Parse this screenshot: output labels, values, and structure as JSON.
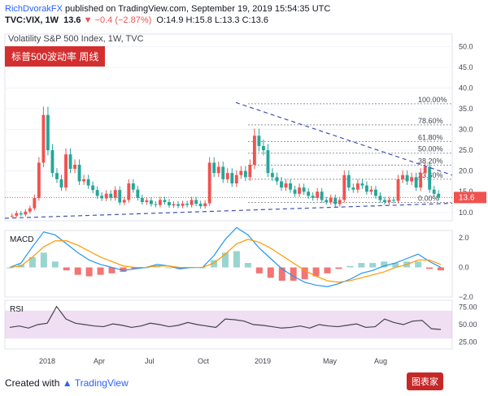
{
  "header": {
    "author": "RichDvorakFX",
    "published": "published on TradingView.com, September 19, 2019 15:54:35 UTC",
    "symbol": "TVC:VIX, 1W",
    "last": "13.6",
    "change": "−0.4 (−2.87%)",
    "ohlc": "O:14.9  H:15.8  L:13.3  C:13.6"
  },
  "main_title": "Volatility S&P 500 Index, 1W, TVC",
  "badge_text": "标普500波动率  周线",
  "footer": {
    "created_with": "Created with",
    "brand": "TradingView"
  },
  "logo_text": "图表家",
  "colors": {
    "up": "#26a69a",
    "down": "#ef5350",
    "last": "#ef5350",
    "macd": "#2196f3",
    "signal": "#ff9800",
    "rsi": "#434651",
    "rsi_band": "#e1bee7"
  },
  "chart_data": [
    {
      "type": "candlestick",
      "title": "Volatility S&P 500 Index, 1W, TVC",
      "ylim": [
        8,
        53
      ],
      "yticks": [
        "50.0",
        "45.0",
        "40.0",
        "35.0",
        "30.0",
        "25.0",
        "20.0",
        "15.0",
        "10.0"
      ],
      "last_price_label": "13.6",
      "fib_levels": [
        {
          "label": "100.00%",
          "value": 36.2
        },
        {
          "label": "78.60%",
          "value": 31.1
        },
        {
          "label": "61.80%",
          "value": 27.1
        },
        {
          "label": "50.00%",
          "value": 24.3
        },
        {
          "label": "38.20%",
          "value": 21.4
        },
        {
          "label": "23.60%",
          "value": 18.0
        },
        {
          "label": "0.00%",
          "value": 12.4
        }
      ],
      "x_labels": [
        "2018",
        "Apr",
        "Jul",
        "Oct",
        "2019",
        "May",
        "Aug"
      ],
      "weekly_close": [
        9.2,
        9.8,
        9.5,
        10.2,
        11.0,
        13.5,
        22.0,
        33.5,
        25.0,
        19.5,
        18.0,
        16.0,
        24.0,
        20.5,
        21.5,
        17.5,
        18.0,
        16.5,
        15.4,
        14.0,
        13.4,
        14.5,
        13.5,
        15.4,
        12.4,
        13.0,
        17.0,
        15.5,
        13.5,
        12.5,
        12.9,
        12.0,
        11.8,
        13.0,
        12.5,
        11.7,
        12.0,
        11.6,
        12.1,
        11.8,
        13.0,
        12.1,
        11.5,
        12.2,
        22.0,
        19.5,
        21.0,
        18.0,
        19.5,
        17.0,
        19.0,
        20.0,
        18.5,
        21.5,
        28.5,
        26.0,
        25.0,
        19.5,
        18.5,
        17.5,
        16.0,
        17.0,
        15.5,
        14.5,
        16.0,
        15.0,
        14.0,
        13.5,
        15.0,
        13.0,
        12.5,
        13.5,
        12.0,
        13.0,
        19.0,
        16.0,
        15.5,
        17.0,
        16.5,
        15.0,
        15.5,
        14.0,
        13.0,
        12.5,
        13.0,
        12.8,
        18.0,
        19.0,
        17.5,
        18.5,
        16.0,
        19.5,
        21.0,
        15.5,
        14.5,
        13.6
      ],
      "trendlines": [
        "descending resistance",
        "ascending support"
      ]
    },
    {
      "type": "line",
      "title": "MACD",
      "ylim": [
        -2.0,
        2.5
      ],
      "yticks": [
        "2.0",
        "0.0",
        "−2.0"
      ],
      "series": [
        {
          "name": "",
          "values": [
            0.0,
            0.3,
            1.4,
            2.4,
            2.2,
            1.6,
            1.0,
            0.5,
            0.2,
            0.0,
            -0.2,
            -0.1,
            0.0,
            0.2,
            0.1,
            -0.1,
            0.0,
            0.0,
            0.8,
            1.9,
            2.7,
            2.2,
            1.3,
            0.6,
            -0.1,
            -0.6,
            -1.0,
            -1.2,
            -1.3,
            -1.1,
            -0.8,
            -0.4,
            -0.2,
            0.1,
            0.3,
            0.6,
            0.9,
            0.4,
            0.0
          ]
        },
        {
          "name": "",
          "values": [
            0.0,
            0.1,
            0.7,
            1.4,
            1.8,
            1.8,
            1.5,
            1.1,
            0.7,
            0.4,
            0.1,
            0.0,
            0.0,
            0.1,
            0.1,
            0.0,
            0.0,
            0.0,
            0.3,
            0.9,
            1.6,
            1.9,
            1.7,
            1.3,
            0.8,
            0.3,
            -0.2,
            -0.6,
            -0.9,
            -1.0,
            -0.9,
            -0.7,
            -0.5,
            -0.3,
            0.0,
            0.2,
            0.5,
            0.5,
            0.2
          ]
        }
      ]
    },
    {
      "type": "line",
      "title": "RSI",
      "ylim": [
        15,
        85
      ],
      "yticks": [
        "75.00",
        "50.00",
        "25.00"
      ],
      "band": [
        30,
        70
      ],
      "series": [
        {
          "name": "",
          "values": [
            46,
            48,
            45,
            50,
            52,
            76,
            58,
            52,
            50,
            48,
            47,
            51,
            49,
            46,
            48,
            52,
            50,
            47,
            49,
            53,
            50,
            48,
            46,
            58,
            57,
            55,
            50,
            49,
            47,
            45,
            46,
            48,
            45,
            50,
            48,
            47,
            49,
            51,
            46,
            47,
            58,
            53,
            50,
            55,
            56,
            44,
            43
          ]
        }
      ]
    }
  ]
}
